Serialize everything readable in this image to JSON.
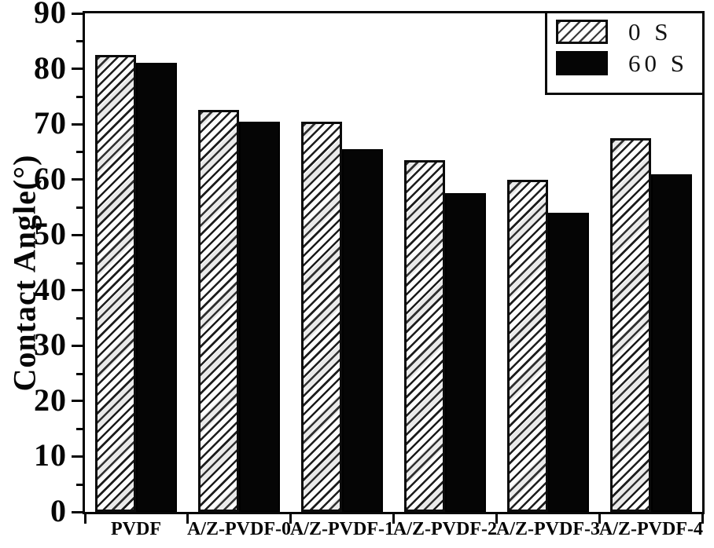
{
  "chart_data": {
    "type": "bar",
    "title": "",
    "xlabel": "",
    "ylabel": "Contact Angle(°)",
    "ylim": [
      0,
      90
    ],
    "ytick_step": 10,
    "ytick_minor_step": 5,
    "yticks": [
      "0",
      "10",
      "20",
      "30",
      "40",
      "50",
      "60",
      "70",
      "80",
      "90"
    ],
    "grid": false,
    "legend_position": "top-right-inside",
    "categories": [
      "PVDF",
      "A/Z-PVDF-0",
      "A/Z-PVDF-1",
      "A/Z-PVDF-2",
      "A/Z-PVDF-3",
      "A/Z-PVDF-4"
    ],
    "series": [
      {
        "name": "0 S",
        "style": "diagonal-hatch",
        "values": [
          82.5,
          72.5,
          70.5,
          63.5,
          60,
          67.5
        ]
      },
      {
        "name": "60 S",
        "style": "solid-black",
        "values": [
          81,
          70.5,
          65.5,
          57.5,
          54,
          61
        ]
      }
    ],
    "colors": {
      "ink": "#050505",
      "solid_bar": "#050505",
      "hatch_line": "#1c1c1c",
      "background": "#ffffff"
    }
  }
}
